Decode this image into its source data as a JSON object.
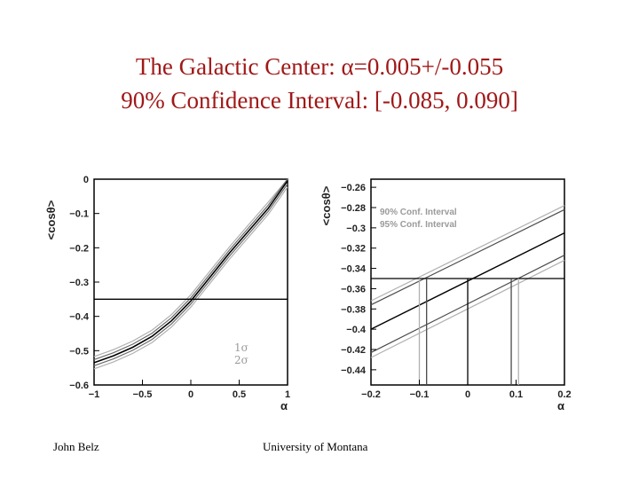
{
  "slide": {
    "title_line1": "The Galactic Center: α=0.005+/-0.055",
    "title_line2": "90% Confidence Interval: [-0.085, 0.090]",
    "footer_left": "John Belz",
    "footer_right": "University of Montana"
  },
  "colors": {
    "title": "#a01818",
    "frame": "#000000",
    "band": "#b0b0b0",
    "central": "#000000"
  },
  "chart_data": [
    {
      "type": "line",
      "xlabel": "α",
      "ylabel": "<cosθ>",
      "xlim": [
        -1,
        1
      ],
      "ylim": [
        -0.6,
        0
      ],
      "xticks": [
        -1,
        -0.5,
        0,
        0.5,
        1
      ],
      "yticks": [
        0,
        -0.1,
        -0.2,
        -0.3,
        -0.4,
        -0.5,
        -0.6
      ],
      "legend": {
        "position": "bottom-right",
        "entries": [
          "1σ",
          "2σ"
        ]
      },
      "central_curve": {
        "x": [
          -1,
          -0.8,
          -0.6,
          -0.4,
          -0.2,
          0,
          0.2,
          0.4,
          0.6,
          0.8,
          1
        ],
        "y": [
          -0.535,
          -0.515,
          -0.49,
          -0.458,
          -0.413,
          -0.355,
          -0.285,
          -0.215,
          -0.15,
          -0.085,
          -0.005
        ]
      },
      "band_offsets": {
        "one_sigma": 0.009,
        "two_sigma": 0.018
      },
      "hline": -0.35
    },
    {
      "type": "line",
      "xlabel": "α",
      "ylabel": "<cosθ>",
      "xlim": [
        -0.2,
        0.2
      ],
      "ylim": [
        -0.455,
        -0.252
      ],
      "xticks": [
        -0.2,
        -0.1,
        0,
        0.1,
        0.2
      ],
      "yticks": [
        -0.26,
        -0.28,
        -0.3,
        -0.32,
        -0.34,
        -0.36,
        -0.38,
        -0.4,
        -0.42,
        -0.44
      ],
      "legend": {
        "position": "top-left",
        "entries": [
          "90% Conf. Interval",
          "95% Conf. Interval"
        ]
      },
      "series": [
        {
          "x": [
            -0.2,
            0.2
          ],
          "y": [
            -0.4,
            -0.305
          ]
        },
        {
          "x": [
            -0.2,
            0.2
          ],
          "y": [
            -0.376,
            -0.282
          ]
        },
        {
          "x": [
            -0.2,
            0.2
          ],
          "y": [
            -0.423,
            -0.327
          ]
        },
        {
          "x": [
            -0.2,
            0.2
          ],
          "y": [
            -0.372,
            -0.278
          ]
        },
        {
          "x": [
            -0.2,
            0.2
          ],
          "y": [
            -0.428,
            -0.332
          ]
        }
      ],
      "hline": -0.35,
      "vlines": [
        {
          "x": 0,
          "kind": "central"
        },
        {
          "x": -0.085,
          "kind": "90%"
        },
        {
          "x": 0.09,
          "kind": "90%"
        },
        {
          "x": -0.1,
          "kind": "95%"
        },
        {
          "x": 0.105,
          "kind": "95%"
        }
      ]
    }
  ]
}
